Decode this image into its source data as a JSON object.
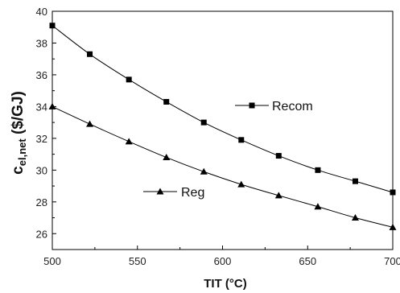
{
  "chart_data": {
    "type": "line",
    "xlabel": "TIT (°C)",
    "ylabel_main": "c",
    "ylabel_sub": "el,net",
    "ylabel_unit": " ($/GJ)",
    "xlim": [
      500,
      700
    ],
    "ylim": [
      25,
      40
    ],
    "x_ticks": [
      500,
      550,
      600,
      650,
      700
    ],
    "y_ticks": [
      26,
      28,
      30,
      32,
      34,
      36,
      38,
      40
    ],
    "grid": false,
    "series": [
      {
        "name": "Recom",
        "marker": "square",
        "color": "#000000",
        "x": [
          500,
          522,
          545,
          567,
          589,
          611,
          633,
          656,
          678,
          700
        ],
        "y": [
          39.1,
          37.3,
          35.7,
          34.3,
          33.0,
          31.9,
          30.9,
          30.0,
          29.3,
          28.6
        ]
      },
      {
        "name": "Reg",
        "marker": "triangle",
        "color": "#000000",
        "x": [
          500,
          522,
          545,
          567,
          589,
          611,
          633,
          656,
          678,
          700
        ],
        "y": [
          34.0,
          32.9,
          31.8,
          30.8,
          29.9,
          29.1,
          28.4,
          27.7,
          27.0,
          26.4
        ]
      }
    ]
  }
}
